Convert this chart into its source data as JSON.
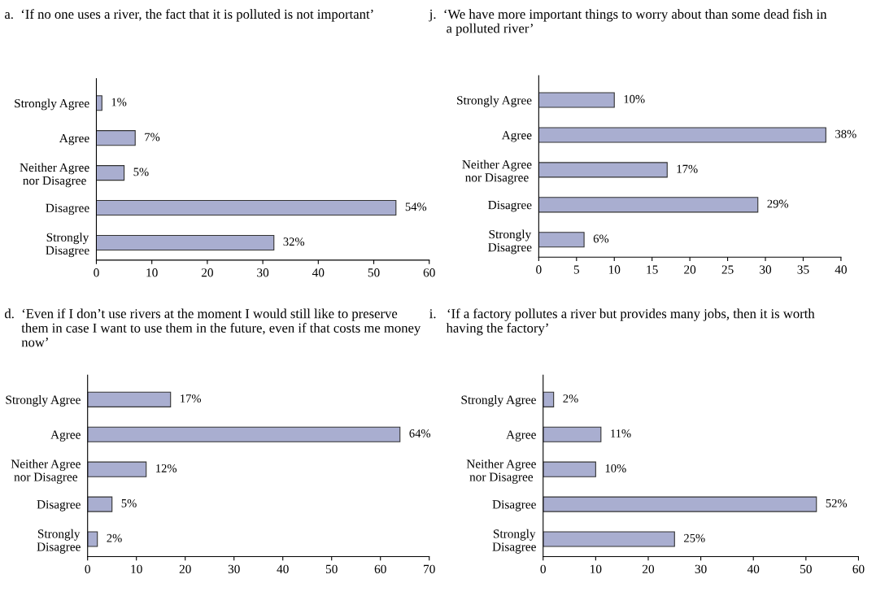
{
  "chart_data": [
    {
      "type": "bar",
      "orientation": "horizontal",
      "title": "a.  ‘If no one uses a river, the fact that it is polluted is not important’",
      "categories": [
        "Strongly Agree",
        "Agree",
        "Neither Agree\nnor Disagree",
        "Disagree",
        "Strongly\nDisagree"
      ],
      "values": [
        1,
        7,
        5,
        54,
        32
      ],
      "value_labels": [
        "1%",
        "7%",
        "5%",
        "54%",
        "32%"
      ],
      "color": "#a9aed0",
      "xlim": [
        0,
        60
      ],
      "xticks": [
        0,
        10,
        20,
        30,
        40,
        50,
        60
      ],
      "grid": false,
      "legend": false
    },
    {
      "type": "bar",
      "orientation": "horizontal",
      "title": "j.  ‘We have more important things to worry about than some dead fish in\n     a polluted river’",
      "categories": [
        "Strongly Agree",
        "Agree",
        "Neither Agree\nnor Disagree",
        "Disagree",
        "Strongly\nDisagree"
      ],
      "values": [
        10,
        38,
        17,
        29,
        6
      ],
      "value_labels": [
        "10%",
        "38%",
        "17%",
        "29%",
        "6%"
      ],
      "color": "#a9aed0",
      "xlim": [
        0,
        40
      ],
      "xticks": [
        0,
        5,
        10,
        15,
        20,
        25,
        30,
        35,
        40
      ],
      "grid": false,
      "legend": false
    },
    {
      "type": "bar",
      "orientation": "horizontal",
      "title": "d.  ‘Even if I don’t use rivers at the moment I would still like to preserve\n     them in case I want to use them in the future, even if that costs me money\n     now’",
      "categories": [
        "Strongly Agree",
        "Agree",
        "Neither Agree\nnor Disagree",
        "Disagree",
        "Strongly\nDisagree"
      ],
      "values": [
        17,
        64,
        12,
        5,
        2
      ],
      "value_labels": [
        "17%",
        "64%",
        "12%",
        "5%",
        "2%"
      ],
      "color": "#a9aed0",
      "xlim": [
        0,
        70
      ],
      "xticks": [
        0,
        10,
        20,
        30,
        40,
        50,
        60,
        70
      ],
      "grid": false,
      "legend": false
    },
    {
      "type": "bar",
      "orientation": "horizontal",
      "title": "i.   ‘If a factory pollutes a river but provides many jobs, then it is worth\n     having the factory’",
      "categories": [
        "Strongly Agree",
        "Agree",
        "Neither Agree\nnor Disagree",
        "Disagree",
        "Strongly\nDisagree"
      ],
      "values": [
        2,
        11,
        10,
        52,
        25
      ],
      "value_labels": [
        "2%",
        "11%",
        "10%",
        "52%",
        "25%"
      ],
      "color": "#a9aed0",
      "xlim": [
        0,
        60
      ],
      "xticks": [
        0,
        10,
        20,
        30,
        40,
        50,
        60
      ],
      "grid": false,
      "legend": false
    }
  ]
}
